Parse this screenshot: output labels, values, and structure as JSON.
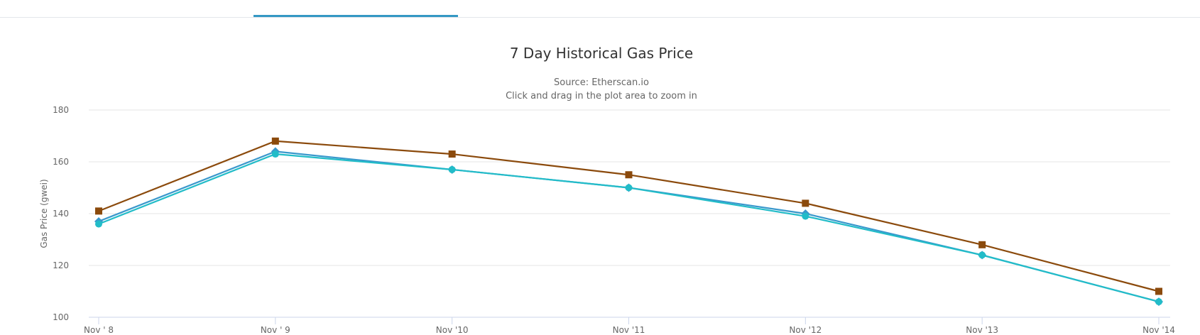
{
  "chart_data": {
    "type": "line",
    "title": "7 Day Historical Gas Price",
    "subtitle": [
      "Source: Etherscan.io",
      "Click and drag in the plot area to zoom in"
    ],
    "xlabel": "",
    "ylabel": "Gas Price (gwei)",
    "categories": [
      "Nov ' 8",
      "Nov ' 9",
      "Nov '10",
      "Nov '11",
      "Nov '12",
      "Nov '13",
      "Nov '14"
    ],
    "yticks": [
      100,
      120,
      140,
      160,
      180
    ],
    "ylim": [
      100,
      180
    ],
    "grid": true,
    "series": [
      {
        "values": [
          141,
          168,
          163,
          155,
          144,
          128,
          110
        ],
        "color": "#8b4a0c",
        "marker": "square"
      },
      {
        "values": [
          137,
          164,
          157,
          150,
          140,
          124,
          106
        ],
        "color": "#3a98cc",
        "marker": "diamond"
      },
      {
        "values": [
          136,
          163,
          157,
          150,
          139,
          124,
          106
        ],
        "color": "#22bcc8",
        "marker": "circle"
      }
    ]
  },
  "tabs": {
    "active_color": "#3498c4"
  }
}
